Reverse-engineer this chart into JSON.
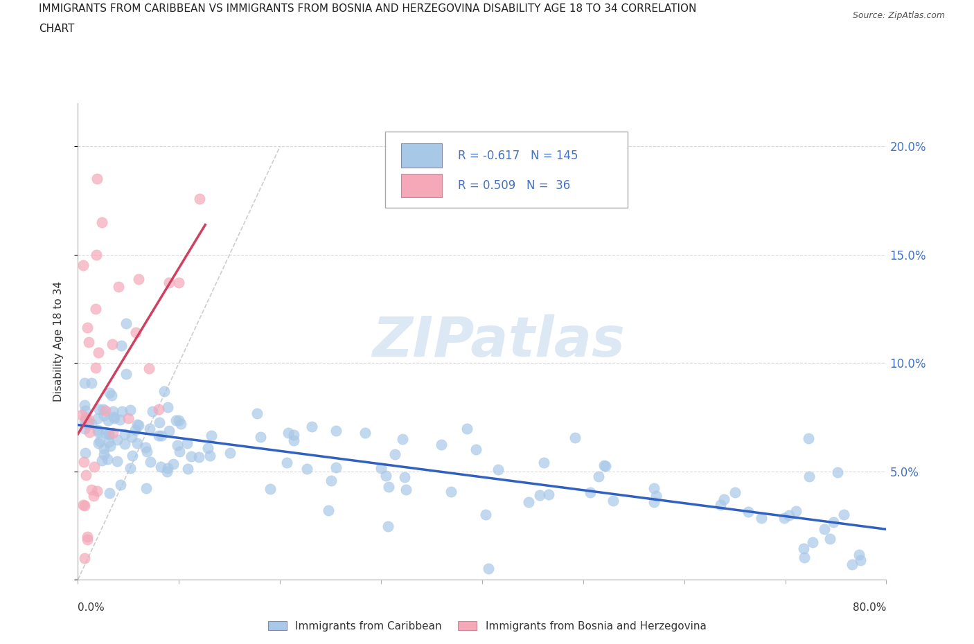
{
  "title_line1": "IMMIGRANTS FROM CARIBBEAN VS IMMIGRANTS FROM BOSNIA AND HERZEGOVINA DISABILITY AGE 18 TO 34 CORRELATION",
  "title_line2": "CHART",
  "source": "Source: ZipAtlas.com",
  "ylabel": "Disability Age 18 to 34",
  "ytick_values": [
    0.0,
    0.05,
    0.1,
    0.15,
    0.2
  ],
  "ytick_labels_right": [
    "",
    "5.0%",
    "10.0%",
    "15.0%",
    "20.0%"
  ],
  "xlim": [
    0.0,
    0.8
  ],
  "ylim": [
    0.0,
    0.22
  ],
  "R_caribbean": -0.617,
  "N_caribbean": 145,
  "R_bosnia": 0.509,
  "N_bosnia": 36,
  "color_caribbean": "#a8c8e8",
  "color_bosnia": "#f4a8b8",
  "line_color_caribbean": "#3060c0",
  "line_color_bosnia": "#d04060",
  "line_color_diagonal": "#c8c8c8",
  "watermark_text": "ZIPatlas",
  "legend_label_caribbean": "Immigrants from Caribbean",
  "legend_label_bosnia": "Immigrants from Bosnia and Herzegovina"
}
